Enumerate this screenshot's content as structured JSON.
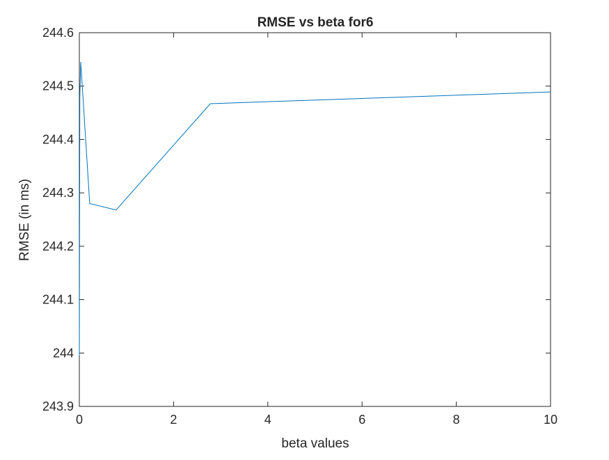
{
  "chart_data": {
    "type": "line",
    "title": "RMSE vs beta for6",
    "xlabel": "beta values",
    "ylabel": "RMSE (in ms)",
    "xlim": [
      0,
      10
    ],
    "ylim": [
      243.9,
      244.6
    ],
    "xticks": [
      0,
      2,
      4,
      6,
      8,
      10
    ],
    "xtick_labels": [
      "0",
      "2",
      "4",
      "6",
      "8",
      "10"
    ],
    "yticks": [
      243.9,
      244.0,
      244.1,
      244.2,
      244.3,
      244.4,
      244.5,
      244.6
    ],
    "ytick_labels": [
      "243.9",
      "244",
      "244.1",
      "244.2",
      "244.3",
      "244.4",
      "244.5",
      "244.6"
    ],
    "grid": false,
    "line_color": "#0072BD",
    "series": [
      {
        "x": [
          0.0,
          0.01,
          0.03,
          0.22,
          0.78,
          2.78,
          10.0
        ],
        "y": [
          243.995,
          244.48,
          244.545,
          244.28,
          244.268,
          244.467,
          244.489
        ]
      }
    ]
  }
}
